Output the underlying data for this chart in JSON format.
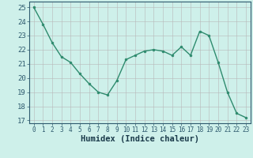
{
  "x": [
    0,
    1,
    2,
    3,
    4,
    5,
    6,
    7,
    8,
    9,
    10,
    11,
    12,
    13,
    14,
    15,
    16,
    17,
    18,
    19,
    20,
    21,
    22,
    23
  ],
  "y": [
    25.0,
    23.8,
    22.5,
    21.5,
    21.1,
    20.3,
    19.6,
    19.0,
    18.8,
    19.8,
    21.3,
    21.6,
    21.9,
    22.0,
    21.9,
    21.6,
    22.2,
    21.6,
    23.3,
    23.0,
    21.1,
    19.0,
    17.5,
    17.2
  ],
  "xlabel": "Humidex (Indice chaleur)",
  "ylim": [
    16.8,
    25.4
  ],
  "xlim": [
    -0.5,
    23.5
  ],
  "yticks": [
    17,
    18,
    19,
    20,
    21,
    22,
    23,
    24,
    25
  ],
  "xticks": [
    0,
    1,
    2,
    3,
    4,
    5,
    6,
    7,
    8,
    9,
    10,
    11,
    12,
    13,
    14,
    15,
    16,
    17,
    18,
    19,
    20,
    21,
    22,
    23
  ],
  "line_color": "#2e8b6e",
  "marker_color": "#2e8b6e",
  "bg_color": "#cef0ea",
  "grid_color": "#b8b8b8",
  "tick_label_color": "#2e5a6e",
  "xlabel_color": "#1a3a4a",
  "fig_bg": "#cef0ea",
  "xlabel_fontsize": 7.5,
  "tick_fontsize": 5.5,
  "ytick_fontsize": 6.5
}
